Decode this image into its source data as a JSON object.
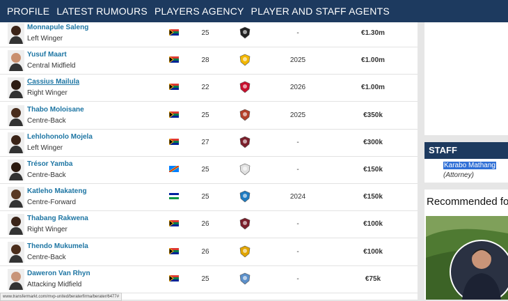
{
  "nav": [
    "PROFILE",
    "LATEST RUMOURS",
    "PLAYERS AGENCY",
    "PLAYER AND STAFF AGENTS"
  ],
  "players": [
    {
      "name": "Monnapule Saleng",
      "position": "Left Winger",
      "age": "25",
      "contract": "-",
      "value": "€1.30m"
    },
    {
      "name": "Yusuf Maart",
      "position": "Central Midfield",
      "age": "28",
      "contract": "2025",
      "value": "€1.00m"
    },
    {
      "name": "Cassius Mailula",
      "position": "Right Winger",
      "age": "22",
      "contract": "2026",
      "value": "€1.00m"
    },
    {
      "name": "Thabo Moloisane",
      "position": "Centre-Back",
      "age": "25",
      "contract": "2025",
      "value": "€350k"
    },
    {
      "name": "Lehlohonolo Mojela",
      "position": "Left Winger",
      "age": "27",
      "contract": "-",
      "value": "€300k"
    },
    {
      "name": "Trésor Yamba",
      "position": "Centre-Back",
      "age": "25",
      "contract": "-",
      "value": "€150k"
    },
    {
      "name": "Katleho Makateng",
      "position": "Centre-Forward",
      "age": "25",
      "contract": "2024",
      "value": "€150k"
    },
    {
      "name": "Thabang Rakwena",
      "position": "Right Winger",
      "age": "26",
      "contract": "-",
      "value": "€100k"
    },
    {
      "name": "Thendo Mukumela",
      "position": "Centre-Back",
      "age": "26",
      "contract": "-",
      "value": "€100k"
    },
    {
      "name": "Daweron Van Rhyn",
      "position": "Attacking Midfield",
      "age": "25",
      "contract": "-",
      "value": "€75k"
    }
  ],
  "staff": {
    "title": "STAFF",
    "name": "Karabo Mathang",
    "role": "(Attorney)"
  },
  "recommended": "Recommended fo",
  "status_url": "www.transfermarkt.com/mvp-united/beraterfirma/berater/6477#"
}
